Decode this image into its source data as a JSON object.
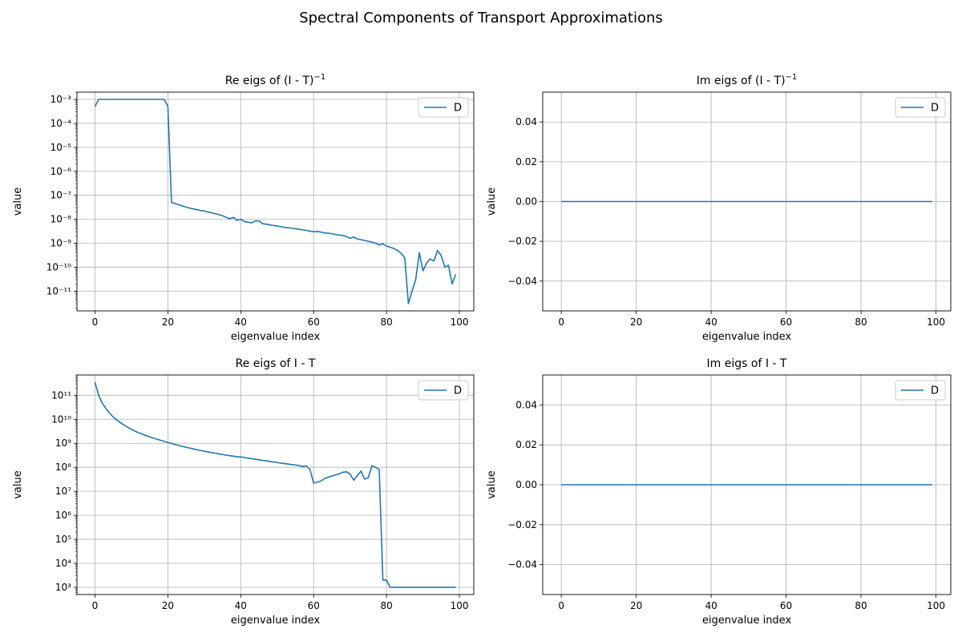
{
  "figure": {
    "suptitle": "Spectral Components of Transport Approximations"
  },
  "style": {
    "series_color": "#1f77b4",
    "grid_color": "#b0b0b0",
    "legend_border_color": "#cccccc"
  },
  "chart_data": [
    {
      "type": "line",
      "title": "Re eigs of (I - T)",
      "title_superscript": "−1",
      "xlabel": "eigenvalue index",
      "ylabel": "value",
      "yscale": "log",
      "xlim": [
        -4.95,
        103.95
      ],
      "ylim": [
        1.5e-12,
        0.002
      ],
      "xticks": [
        0,
        20,
        40,
        60,
        80,
        100
      ],
      "xtick_labels": [
        "0",
        "20",
        "40",
        "60",
        "80",
        "100"
      ],
      "yticks_exp": [
        -11,
        -10,
        -9,
        -8,
        -7,
        -6,
        -5,
        -4,
        -3
      ],
      "ytick_labels": [
        "10⁻¹¹",
        "10⁻¹⁰",
        "10⁻⁹",
        "10⁻⁸",
        "10⁻⁷",
        "10⁻⁶",
        "10⁻⁵",
        "10⁻⁴",
        "10⁻³"
      ],
      "grid": true,
      "legend_position": "upper right",
      "series": [
        {
          "name": "D",
          "x": [
            0,
            1,
            2,
            3,
            4,
            5,
            6,
            7,
            8,
            9,
            10,
            11,
            12,
            13,
            14,
            15,
            16,
            17,
            18,
            19,
            20,
            21,
            22,
            23,
            24,
            25,
            26,
            27,
            28,
            29,
            30,
            31,
            32,
            33,
            34,
            35,
            36,
            37,
            38,
            39,
            40,
            41,
            42,
            43,
            44,
            45,
            46,
            47,
            48,
            49,
            50,
            51,
            52,
            53,
            54,
            55,
            56,
            57,
            58,
            59,
            60,
            61,
            62,
            63,
            64,
            65,
            66,
            67,
            68,
            69,
            70,
            71,
            72,
            73,
            74,
            75,
            76,
            77,
            78,
            79,
            80,
            81,
            82,
            83,
            84,
            85,
            86,
            87,
            88,
            89,
            90,
            91,
            92,
            93,
            94,
            95,
            96,
            97,
            98,
            99
          ],
          "y": [
            0.0005,
            0.001,
            0.001,
            0.001,
            0.001,
            0.001,
            0.001,
            0.001,
            0.001,
            0.001,
            0.001,
            0.001,
            0.001,
            0.001,
            0.001,
            0.001,
            0.001,
            0.001,
            0.001,
            0.001,
            0.0005,
            5e-08,
            4.5e-08,
            4e-08,
            3.6e-08,
            3.2e-08,
            2.9e-08,
            2.7e-08,
            2.5e-08,
            2.3e-08,
            2.2e-08,
            2e-08,
            1.85e-08,
            1.7e-08,
            1.55e-08,
            1.4e-08,
            1.2e-08,
            1.05e-08,
            1.2e-08,
            9e-09,
            1e-08,
            8e-09,
            7.5e-09,
            7e-09,
            8.5e-09,
            8.5e-09,
            6.5e-09,
            6.2e-09,
            5.8e-09,
            5.5e-09,
            5.2e-09,
            4.9e-09,
            4.6e-09,
            4.4e-09,
            4.2e-09,
            4e-09,
            3.8e-09,
            3.6e-09,
            3.4e-09,
            3.2e-09,
            3e-09,
            3.1e-09,
            2.9e-09,
            2.7e-09,
            2.6e-09,
            2.5e-09,
            2.3e-09,
            2.2e-09,
            2.1e-09,
            1.9e-09,
            1.6e-09,
            1.8e-09,
            1.5e-09,
            1.4e-09,
            1.3e-09,
            1.2e-09,
            1.1e-09,
            1e-09,
            8.5e-10,
            9.5e-10,
            7.5e-10,
            6.8e-10,
            6e-10,
            5e-10,
            3.8e-10,
            2.5e-10,
            3e-12,
            1e-11,
            3e-11,
            4e-10,
            7e-11,
            1.5e-10,
            2.2e-10,
            1.8e-10,
            5e-10,
            3e-10,
            1e-10,
            1.2e-10,
            2e-11,
            5e-11
          ]
        }
      ]
    },
    {
      "type": "line",
      "title": "Im eigs of (I - T)",
      "title_superscript": "−1",
      "xlabel": "eigenvalue index",
      "ylabel": "value",
      "yscale": "linear",
      "xlim": [
        -4.95,
        103.95
      ],
      "ylim": [
        -0.055,
        0.055
      ],
      "xticks": [
        0,
        20,
        40,
        60,
        80,
        100
      ],
      "xtick_labels": [
        "0",
        "20",
        "40",
        "60",
        "80",
        "100"
      ],
      "yticks": [
        -0.04,
        -0.02,
        0.0,
        0.02,
        0.04
      ],
      "ytick_labels": [
        "−0.04",
        "−0.02",
        "0.00",
        "0.02",
        "0.04"
      ],
      "grid": true,
      "legend_position": "upper right",
      "series": [
        {
          "name": "D",
          "x": [
            0,
            99
          ],
          "y": [
            0,
            0
          ]
        }
      ]
    },
    {
      "type": "line",
      "title": "Re eigs of I - T",
      "title_superscript": "",
      "xlabel": "eigenvalue index",
      "ylabel": "value",
      "yscale": "log",
      "xlim": [
        -4.95,
        103.95
      ],
      "ylim": [
        500.0,
        700000000000.0
      ],
      "xticks": [
        0,
        20,
        40,
        60,
        80,
        100
      ],
      "xtick_labels": [
        "0",
        "20",
        "40",
        "60",
        "80",
        "100"
      ],
      "yticks_exp": [
        3,
        4,
        5,
        6,
        7,
        8,
        9,
        10,
        11
      ],
      "ytick_labels": [
        "10³",
        "10⁴",
        "10⁵",
        "10⁶",
        "10⁷",
        "10⁸",
        "10⁹",
        "10¹⁰",
        "10¹¹"
      ],
      "grid": true,
      "legend_position": "upper right",
      "series": [
        {
          "name": "D",
          "x": [
            0,
            1,
            2,
            3,
            4,
            5,
            6,
            7,
            8,
            9,
            10,
            11,
            12,
            13,
            14,
            15,
            16,
            17,
            18,
            19,
            20,
            21,
            22,
            23,
            24,
            25,
            26,
            27,
            28,
            29,
            30,
            31,
            32,
            33,
            34,
            35,
            36,
            37,
            38,
            39,
            40,
            41,
            42,
            43,
            44,
            45,
            46,
            47,
            48,
            49,
            50,
            51,
            52,
            53,
            54,
            55,
            56,
            57,
            58,
            59,
            60,
            61,
            62,
            63,
            64,
            65,
            66,
            67,
            68,
            69,
            70,
            71,
            72,
            73,
            74,
            75,
            76,
            77,
            78,
            79,
            80,
            81,
            82,
            83,
            84,
            85,
            86,
            87,
            88,
            89,
            90,
            91,
            92,
            93,
            94,
            95,
            96,
            97,
            98,
            99
          ],
          "y": [
            350000000000.0,
            100000000000.0,
            47000000000.0,
            28000000000.0,
            18000000000.0,
            12500000000.0,
            9300000000.0,
            7200000000.0,
            5700000000.0,
            4600000000.0,
            3800000000.0,
            3200000000.0,
            2750000000.0,
            2400000000.0,
            2100000000.0,
            1850000000.0,
            1650000000.0,
            1480000000.0,
            1330000000.0,
            1200000000.0,
            1080000000.0,
            980000000.0,
            890000000.0,
            810000000.0,
            740000000.0,
            680000000.0,
            630000000.0,
            580000000.0,
            540000000.0,
            500000000.0,
            470000000.0,
            440000000.0,
            410000000.0,
            385000000.0,
            360000000.0,
            340000000.0,
            320000000.0,
            305000000.0,
            290000000.0,
            275000000.0,
            270000000.0,
            255000000.0,
            240000000.0,
            228000000.0,
            216000000.0,
            205000000.0,
            195000000.0,
            185000000.0,
            175000000.0,
            166000000.0,
            158000000.0,
            150000000.0,
            143000000.0,
            136000000.0,
            130000000.0,
            124000000.0,
            118000000.0,
            108000000.0,
            115000000.0,
            80000000.0,
            22000000.0,
            24000000.0,
            27000000.0,
            34000000.0,
            39000000.0,
            43000000.0,
            48000000.0,
            53000000.0,
            62000000.0,
            65000000.0,
            52000000.0,
            29000000.0,
            45000000.0,
            70000000.0,
            32000000.0,
            37000000.0,
            115000000.0,
            100000000.0,
            80000000.0,
            2000.0,
            2000.0,
            1000.0,
            1000.0,
            1000.0,
            1000.0,
            1000.0,
            1000.0,
            1000.0,
            1000.0,
            1000.0,
            1000.0,
            1000.0,
            1000.0,
            1000.0,
            1000.0,
            1000.0,
            1000.0,
            1000.0,
            1000.0,
            1000.0
          ]
        }
      ]
    },
    {
      "type": "line",
      "title": "Im eigs of I - T",
      "title_superscript": "",
      "xlabel": "eigenvalue index",
      "ylabel": "value",
      "yscale": "linear",
      "xlim": [
        -4.95,
        103.95
      ],
      "ylim": [
        -0.055,
        0.055
      ],
      "xticks": [
        0,
        20,
        40,
        60,
        80,
        100
      ],
      "xtick_labels": [
        "0",
        "20",
        "40",
        "60",
        "80",
        "100"
      ],
      "yticks": [
        -0.04,
        -0.02,
        0.0,
        0.02,
        0.04
      ],
      "ytick_labels": [
        "−0.04",
        "−0.02",
        "0.00",
        "0.02",
        "0.04"
      ],
      "grid": true,
      "legend_position": "upper right",
      "series": [
        {
          "name": "D",
          "x": [
            0,
            99
          ],
          "y": [
            0,
            0
          ]
        }
      ]
    }
  ]
}
